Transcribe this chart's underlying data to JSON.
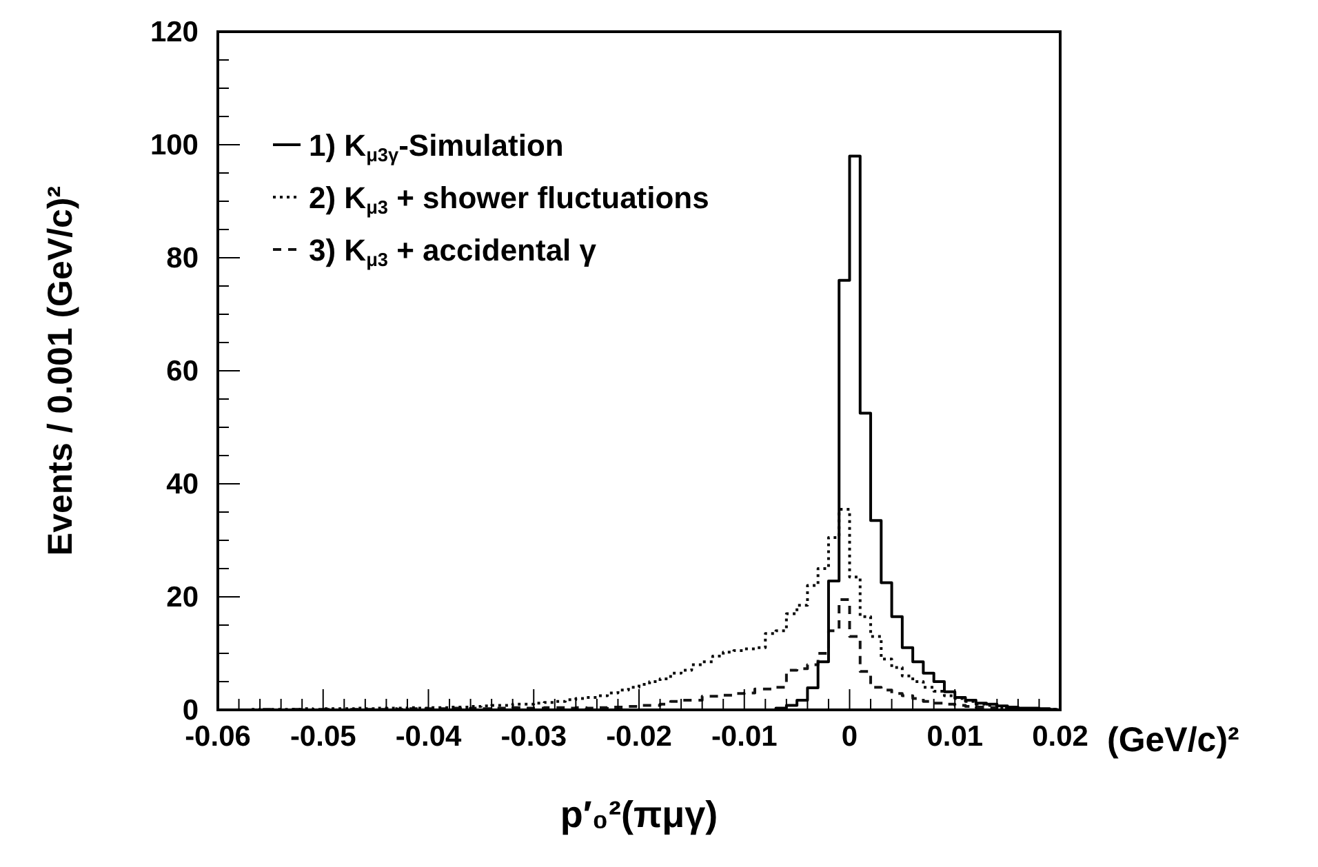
{
  "chart_data": {
    "type": "histogram",
    "xlabel": "p′₀²(πμγ)",
    "ylabel": "Events / 0.001 (GeV/c)²",
    "annotations": [
      "(GeV/c)²"
    ],
    "bins": [
      -0.06,
      -0.059,
      -0.058,
      -0.057,
      -0.056,
      -0.055,
      -0.054,
      -0.053,
      -0.052,
      -0.051,
      -0.05,
      -0.049,
      -0.048,
      -0.047,
      -0.046,
      -0.045,
      -0.044,
      -0.043,
      -0.042,
      -0.041,
      -0.04,
      -0.039,
      -0.038,
      -0.037,
      -0.036,
      -0.035,
      -0.034,
      -0.033,
      -0.032,
      -0.031,
      -0.03,
      -0.029,
      -0.028,
      -0.027,
      -0.026,
      -0.025,
      -0.024,
      -0.023,
      -0.022,
      -0.021,
      -0.02,
      -0.019,
      -0.018,
      -0.017,
      -0.016,
      -0.015,
      -0.014,
      -0.013,
      -0.012,
      -0.011,
      -0.01,
      -0.009,
      -0.008,
      -0.007,
      -0.006,
      -0.005,
      -0.004,
      -0.003,
      -0.002,
      -0.001,
      0,
      0.001,
      0.002,
      0.003,
      0.004,
      0.005,
      0.006,
      0.007,
      0.008,
      0.009,
      0.01,
      0.011,
      0.012,
      0.013,
      0.014,
      0.015,
      0.016,
      0.017,
      0.018,
      0.019,
      0.02
    ],
    "series": [
      {
        "name": "1) K$_{μ3γ}$-Simulation",
        "color": "#000000",
        "line_style": "solid",
        "values": [
          0,
          0,
          0,
          0,
          0,
          0,
          0,
          0,
          0,
          0,
          0,
          0,
          0,
          0,
          0,
          0,
          0,
          0,
          0,
          0,
          0,
          0,
          0,
          0,
          0,
          0,
          0,
          0,
          0,
          0,
          0,
          0,
          0,
          0,
          0,
          0,
          0,
          0,
          0,
          0,
          0,
          0,
          0,
          0,
          0,
          0,
          0,
          0,
          0,
          0,
          0,
          0,
          0,
          0.3,
          0.8,
          1.7,
          3.9,
          8.5,
          22.8,
          76,
          98,
          52.5,
          33.5,
          22.5,
          16.5,
          11,
          8.5,
          6.5,
          5,
          3.2,
          2.2,
          1.7,
          1.2,
          1,
          0.7,
          0.5,
          0.3,
          0.3,
          0.2,
          0
        ]
      },
      {
        "name": "2) K$_{μ3}$ + shower fluctuations",
        "color": "#0a0a0a",
        "line_style": "dotted",
        "values": [
          0,
          0,
          0,
          0.1,
          0,
          0.1,
          0.1,
          0.1,
          0.2,
          0.1,
          0.2,
          0.2,
          0.2,
          0.3,
          0.2,
          0.3,
          0.3,
          0.3,
          0.4,
          0.3,
          0.4,
          0.4,
          0.5,
          0.5,
          0.6,
          0.7,
          0.8,
          0.8,
          1,
          1,
          1.2,
          1.3,
          1.5,
          1.8,
          2,
          2.2,
          2.5,
          3,
          3.5,
          4,
          4.5,
          5,
          5.5,
          6.5,
          7,
          8,
          8.5,
          9.5,
          10.2,
          10.5,
          10.8,
          11,
          13.5,
          14,
          17,
          18.5,
          22,
          25,
          30.5,
          35.5,
          23.5,
          16.5,
          13,
          9,
          7.5,
          6,
          5,
          4,
          3.3,
          2.5,
          2,
          1.5,
          1,
          0.8,
          0.5,
          0.3,
          0.2,
          0.2,
          0.1,
          0.1
        ]
      },
      {
        "name": "3) K$_{μ3}$ + accidental γ",
        "color": "#141414",
        "line_style": "dashed",
        "values": [
          0,
          0,
          0,
          0,
          0.1,
          0,
          0,
          0.1,
          0,
          0.1,
          0.1,
          0,
          0.1,
          0.1,
          0.1,
          0.1,
          0.2,
          0.1,
          0.2,
          0.2,
          0.2,
          0.2,
          0.3,
          0.2,
          0.3,
          0.2,
          0.3,
          0.3,
          0.4,
          0.3,
          0.3,
          0.4,
          0.4,
          0.3,
          0.4,
          0.3,
          0.4,
          0.5,
          0.5,
          0.6,
          0.8,
          0.8,
          1,
          1.5,
          1.7,
          1.7,
          2.4,
          2.4,
          2.6,
          2.9,
          3,
          3.7,
          3.7,
          4,
          7,
          7.3,
          8,
          10,
          14,
          19.5,
          13,
          6.8,
          4,
          3.5,
          2.9,
          2.5,
          2,
          1.5,
          1.2,
          1,
          0.8,
          0.6,
          0.5,
          0.4,
          0.3,
          0.2,
          0.1,
          0.1,
          0.1,
          0.1
        ]
      }
    ],
    "xlim": [
      -0.06,
      0.02
    ],
    "xticks": [
      -0.06,
      {
        "value": -0.058,
        "label": null
      },
      {
        "value": -0.056,
        "label": null
      },
      {
        "value": -0.054,
        "label": null
      },
      {
        "value": -0.052,
        "label": null
      },
      -0.05,
      {
        "value": -0.048,
        "label": null
      },
      {
        "value": -0.046,
        "label": null
      },
      {
        "value": -0.044,
        "label": null
      },
      {
        "value": -0.042,
        "label": null
      },
      -0.04,
      {
        "value": -0.038,
        "label": null
      },
      {
        "value": -0.036,
        "label": null
      },
      {
        "value": -0.034,
        "label": null
      },
      {
        "value": -0.032,
        "label": null
      },
      -0.03,
      {
        "value": -0.028,
        "label": null
      },
      {
        "value": -0.026,
        "label": null
      },
      {
        "value": -0.024,
        "label": null
      },
      {
        "value": -0.022,
        "label": null
      },
      -0.02,
      {
        "value": -0.018,
        "label": null
      },
      {
        "value": -0.016,
        "label": null
      },
      {
        "value": -0.014,
        "label": null
      },
      {
        "value": -0.012,
        "label": null
      },
      -0.01,
      {
        "value": -0.008,
        "label": null
      },
      {
        "value": -0.006,
        "label": null
      },
      {
        "value": -0.004,
        "label": null
      },
      {
        "value": -0.002,
        "label": null
      },
      0,
      {
        "value": 0.002,
        "label": null
      },
      {
        "value": 0.004,
        "label": null
      },
      {
        "value": 0.006,
        "label": null
      },
      {
        "value": 0.008,
        "label": null
      },
      0.01,
      {
        "value": 0.012,
        "label": null
      },
      {
        "value": 0.014,
        "label": null
      },
      {
        "value": 0.016,
        "label": null
      },
      {
        "value": 0.018,
        "label": null
      },
      0.02
    ],
    "ylim": [
      0,
      120
    ],
    "yticks": [
      0,
      {
        "value": 5,
        "label": null
      },
      {
        "value": 10,
        "label": null
      },
      {
        "value": 15,
        "label": null
      },
      20,
      {
        "value": 25,
        "label": null
      },
      {
        "value": 30,
        "label": null
      },
      {
        "value": 35,
        "label": null
      },
      40,
      {
        "value": 45,
        "label": null
      },
      {
        "value": 50,
        "label": null
      },
      {
        "value": 55,
        "label": null
      },
      60,
      {
        "value": 65,
        "label": null
      },
      {
        "value": 70,
        "label": null
      },
      {
        "value": 75,
        "label": null
      },
      80,
      {
        "value": 85,
        "label": null
      },
      {
        "value": 90,
        "label": null
      },
      {
        "value": 95,
        "label": null
      },
      100,
      {
        "value": 105,
        "label": null
      },
      {
        "value": 110,
        "label": null
      },
      {
        "value": 115,
        "label": null
      },
      120
    ],
    "legend": "top left"
  }
}
